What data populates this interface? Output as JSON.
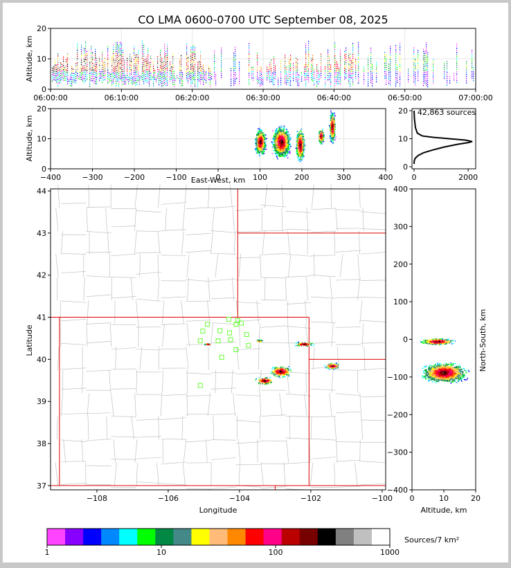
{
  "title": "CO LMA 0600-0700 UTC September 08, 2025",
  "colors": {
    "figure_bg": "#ffffff",
    "frame_bg": "#c8c8c8",
    "state_border": "#dd0000",
    "county_border": "#c0c0c0",
    "station": "#66ff33"
  },
  "chart_data": [
    {
      "id": "time_height",
      "type": "scatter",
      "ylabel": "Altitude, km",
      "xlim": [
        "06:00:00",
        "07:00:00"
      ],
      "ylim": [
        0,
        20
      ],
      "xticks": [
        "06:00:00",
        "06:10:00",
        "06:20:00",
        "06:30:00",
        "06:40:00",
        "06:50:00",
        "07:00:00"
      ],
      "yticks": [
        "0",
        "10",
        "20"
      ],
      "grid": true,
      "description_density": "vertical streaks of sources between ~2 and 19 km, densest 06:00–06:20, gap near 06:27, active again 06:30–06:43 and sparse after 06:45"
    },
    {
      "id": "ew_height",
      "type": "scatter",
      "xlabel": "East-West, km",
      "ylabel": "Altitude, km",
      "xlim": [
        -400,
        400
      ],
      "ylim": [
        0,
        20
      ],
      "xticks": [
        "−400",
        "−300",
        "−200",
        "−100",
        "0",
        "100",
        "200",
        "300",
        "400"
      ],
      "yticks": [
        "0",
        "10",
        "20"
      ],
      "grid": true,
      "clusters": [
        {
          "x_center": 100,
          "z_center": 9,
          "x_half": 15,
          "z_half": 5
        },
        {
          "x_center": 150,
          "z_center": 9,
          "x_half": 25,
          "z_half": 6
        },
        {
          "x_center": 195,
          "z_center": 8,
          "x_half": 12,
          "z_half": 6
        },
        {
          "x_center": 245,
          "z_center": 11,
          "x_half": 8,
          "z_half": 3
        },
        {
          "x_center": 272,
          "z_center": 14,
          "x_half": 8,
          "z_half": 6
        }
      ]
    },
    {
      "id": "alt_histogram",
      "type": "line",
      "annotation": "42,863 sources",
      "xlim": [
        0,
        2200
      ],
      "ylim": [
        0,
        20
      ],
      "xticks": [
        "0",
        "2000"
      ],
      "yticks": [
        "0",
        "10",
        "20"
      ],
      "x": [
        0,
        5,
        40,
        150,
        350,
        700,
        1100,
        1600,
        2000,
        2150,
        1900,
        1300,
        700,
        300,
        120,
        50,
        15,
        0
      ],
      "y": [
        1,
        2,
        3,
        4,
        5,
        6,
        7,
        8,
        8.6,
        9,
        9.5,
        10,
        10.5,
        11,
        12,
        14,
        17,
        20
      ]
    },
    {
      "id": "plan_view",
      "type": "scatter",
      "xlabel": "Longitude",
      "ylabel": "Latitude",
      "xlim": [
        -109.3,
        -99.9
      ],
      "ylim": [
        36.9,
        44.05
      ],
      "xticks": [
        "−108",
        "−106",
        "−104",
        "−102",
        "−100"
      ],
      "yticks": [
        "37",
        "38",
        "39",
        "40",
        "41",
        "42",
        "43",
        "44"
      ],
      "stations": [
        {
          "lon": -104.3,
          "lat": 40.95
        },
        {
          "lon": -104.05,
          "lat": 40.92
        },
        {
          "lon": -104.1,
          "lat": 40.83
        },
        {
          "lon": -103.95,
          "lat": 40.86
        },
        {
          "lon": -104.9,
          "lat": 40.83
        },
        {
          "lon": -105.03,
          "lat": 40.67
        },
        {
          "lon": -104.55,
          "lat": 40.68
        },
        {
          "lon": -104.28,
          "lat": 40.63
        },
        {
          "lon": -103.8,
          "lat": 40.59
        },
        {
          "lon": -105.1,
          "lat": 40.44
        },
        {
          "lon": -104.6,
          "lat": 40.44
        },
        {
          "lon": -104.25,
          "lat": 40.47
        },
        {
          "lon": -103.75,
          "lat": 40.33
        },
        {
          "lon": -104.1,
          "lat": 40.23
        },
        {
          "lon": -104.5,
          "lat": 40.05
        },
        {
          "lon": -105.1,
          "lat": 39.38
        }
      ],
      "clusters": [
        {
          "lon": -102.85,
          "lat": 39.72,
          "dlon": 0.35,
          "dlat": 0.15
        },
        {
          "lon": -103.3,
          "lat": 39.5,
          "dlon": 0.3,
          "dlat": 0.1
        },
        {
          "lon": -102.2,
          "lat": 40.37,
          "dlon": 0.3,
          "dlat": 0.06
        },
        {
          "lon": -101.4,
          "lat": 39.85,
          "dlon": 0.25,
          "dlat": 0.08
        },
        {
          "lon": -103.45,
          "lat": 40.45,
          "dlon": 0.1,
          "dlat": 0.03
        },
        {
          "lon": -104.9,
          "lat": 40.37,
          "dlon": 0.12,
          "dlat": 0.02
        }
      ]
    },
    {
      "id": "ns_height",
      "type": "scatter",
      "xlabel": "Altitude, km",
      "ylabel": "North-South, km",
      "xlim": [
        0,
        20
      ],
      "ylim": [
        -400,
        400
      ],
      "xticks": [
        "0",
        "10",
        "20"
      ],
      "yticks": [
        "−400",
        "−300",
        "−200",
        "−100",
        "0",
        "100",
        "200",
        "300",
        "400"
      ],
      "clusters": [
        {
          "z_center": 8,
          "y_center": -5,
          "z_half": 6,
          "y_half": 10
        },
        {
          "z_center": 10,
          "y_center": -88,
          "z_half": 8,
          "y_half": 30
        }
      ]
    },
    {
      "id": "colorbar",
      "type": "heatmap",
      "label": "Sources/7 km²",
      "scale": "log",
      "range": [
        1,
        1000
      ],
      "ticks": [
        "1",
        "10",
        "100",
        "1000"
      ],
      "colors": [
        "#ff44ff",
        "#8800ff",
        "#0000ff",
        "#0088ff",
        "#00ffff",
        "#00ff00",
        "#008844",
        "#448888",
        "#ffff00",
        "#ffbb77",
        "#ff8800",
        "#ff0000",
        "#ff0088",
        "#bb0000",
        "#770000",
        "#000000",
        "#808080",
        "#c0c0c0",
        "#ffffff"
      ]
    }
  ]
}
